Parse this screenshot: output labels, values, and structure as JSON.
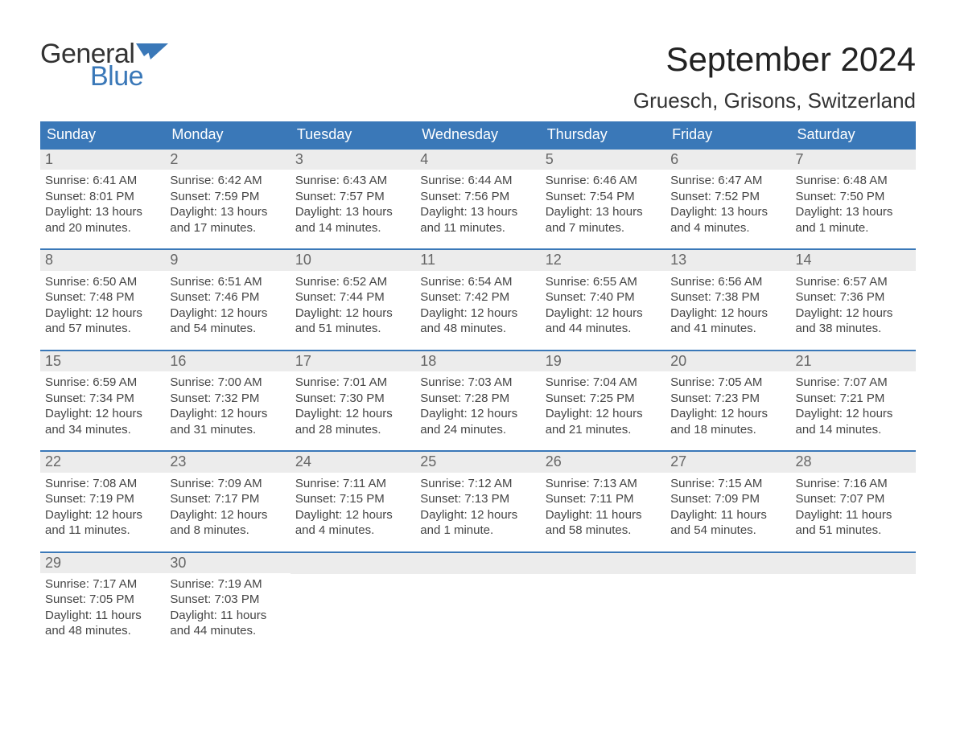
{
  "logo": {
    "general": "General",
    "blue": "Blue"
  },
  "title": "September 2024",
  "location": "Gruesch, Grisons, Switzerland",
  "colors": {
    "header_bg": "#3a78b8",
    "header_text": "#ffffff",
    "daynum_bg": "#ececec",
    "daynum_text": "#666666",
    "body_text": "#444444",
    "row_border": "#3a78b8",
    "logo_blue": "#3a78b8",
    "page_bg": "#ffffff"
  },
  "fonts": {
    "title_size_pt": 32,
    "location_size_pt": 20,
    "dow_size_pt": 14,
    "body_size_pt": 11
  },
  "days_of_week": [
    "Sunday",
    "Monday",
    "Tuesday",
    "Wednesday",
    "Thursday",
    "Friday",
    "Saturday"
  ],
  "weeks": [
    [
      {
        "num": "1",
        "sunrise": "Sunrise: 6:41 AM",
        "sunset": "Sunset: 8:01 PM",
        "d1": "Daylight: 13 hours",
        "d2": "and 20 minutes."
      },
      {
        "num": "2",
        "sunrise": "Sunrise: 6:42 AM",
        "sunset": "Sunset: 7:59 PM",
        "d1": "Daylight: 13 hours",
        "d2": "and 17 minutes."
      },
      {
        "num": "3",
        "sunrise": "Sunrise: 6:43 AM",
        "sunset": "Sunset: 7:57 PM",
        "d1": "Daylight: 13 hours",
        "d2": "and 14 minutes."
      },
      {
        "num": "4",
        "sunrise": "Sunrise: 6:44 AM",
        "sunset": "Sunset: 7:56 PM",
        "d1": "Daylight: 13 hours",
        "d2": "and 11 minutes."
      },
      {
        "num": "5",
        "sunrise": "Sunrise: 6:46 AM",
        "sunset": "Sunset: 7:54 PM",
        "d1": "Daylight: 13 hours",
        "d2": "and 7 minutes."
      },
      {
        "num": "6",
        "sunrise": "Sunrise: 6:47 AM",
        "sunset": "Sunset: 7:52 PM",
        "d1": "Daylight: 13 hours",
        "d2": "and 4 minutes."
      },
      {
        "num": "7",
        "sunrise": "Sunrise: 6:48 AM",
        "sunset": "Sunset: 7:50 PM",
        "d1": "Daylight: 13 hours",
        "d2": "and 1 minute."
      }
    ],
    [
      {
        "num": "8",
        "sunrise": "Sunrise: 6:50 AM",
        "sunset": "Sunset: 7:48 PM",
        "d1": "Daylight: 12 hours",
        "d2": "and 57 minutes."
      },
      {
        "num": "9",
        "sunrise": "Sunrise: 6:51 AM",
        "sunset": "Sunset: 7:46 PM",
        "d1": "Daylight: 12 hours",
        "d2": "and 54 minutes."
      },
      {
        "num": "10",
        "sunrise": "Sunrise: 6:52 AM",
        "sunset": "Sunset: 7:44 PM",
        "d1": "Daylight: 12 hours",
        "d2": "and 51 minutes."
      },
      {
        "num": "11",
        "sunrise": "Sunrise: 6:54 AM",
        "sunset": "Sunset: 7:42 PM",
        "d1": "Daylight: 12 hours",
        "d2": "and 48 minutes."
      },
      {
        "num": "12",
        "sunrise": "Sunrise: 6:55 AM",
        "sunset": "Sunset: 7:40 PM",
        "d1": "Daylight: 12 hours",
        "d2": "and 44 minutes."
      },
      {
        "num": "13",
        "sunrise": "Sunrise: 6:56 AM",
        "sunset": "Sunset: 7:38 PM",
        "d1": "Daylight: 12 hours",
        "d2": "and 41 minutes."
      },
      {
        "num": "14",
        "sunrise": "Sunrise: 6:57 AM",
        "sunset": "Sunset: 7:36 PM",
        "d1": "Daylight: 12 hours",
        "d2": "and 38 minutes."
      }
    ],
    [
      {
        "num": "15",
        "sunrise": "Sunrise: 6:59 AM",
        "sunset": "Sunset: 7:34 PM",
        "d1": "Daylight: 12 hours",
        "d2": "and 34 minutes."
      },
      {
        "num": "16",
        "sunrise": "Sunrise: 7:00 AM",
        "sunset": "Sunset: 7:32 PM",
        "d1": "Daylight: 12 hours",
        "d2": "and 31 minutes."
      },
      {
        "num": "17",
        "sunrise": "Sunrise: 7:01 AM",
        "sunset": "Sunset: 7:30 PM",
        "d1": "Daylight: 12 hours",
        "d2": "and 28 minutes."
      },
      {
        "num": "18",
        "sunrise": "Sunrise: 7:03 AM",
        "sunset": "Sunset: 7:28 PM",
        "d1": "Daylight: 12 hours",
        "d2": "and 24 minutes."
      },
      {
        "num": "19",
        "sunrise": "Sunrise: 7:04 AM",
        "sunset": "Sunset: 7:25 PM",
        "d1": "Daylight: 12 hours",
        "d2": "and 21 minutes."
      },
      {
        "num": "20",
        "sunrise": "Sunrise: 7:05 AM",
        "sunset": "Sunset: 7:23 PM",
        "d1": "Daylight: 12 hours",
        "d2": "and 18 minutes."
      },
      {
        "num": "21",
        "sunrise": "Sunrise: 7:07 AM",
        "sunset": "Sunset: 7:21 PM",
        "d1": "Daylight: 12 hours",
        "d2": "and 14 minutes."
      }
    ],
    [
      {
        "num": "22",
        "sunrise": "Sunrise: 7:08 AM",
        "sunset": "Sunset: 7:19 PM",
        "d1": "Daylight: 12 hours",
        "d2": "and 11 minutes."
      },
      {
        "num": "23",
        "sunrise": "Sunrise: 7:09 AM",
        "sunset": "Sunset: 7:17 PM",
        "d1": "Daylight: 12 hours",
        "d2": "and 8 minutes."
      },
      {
        "num": "24",
        "sunrise": "Sunrise: 7:11 AM",
        "sunset": "Sunset: 7:15 PM",
        "d1": "Daylight: 12 hours",
        "d2": "and 4 minutes."
      },
      {
        "num": "25",
        "sunrise": "Sunrise: 7:12 AM",
        "sunset": "Sunset: 7:13 PM",
        "d1": "Daylight: 12 hours",
        "d2": "and 1 minute."
      },
      {
        "num": "26",
        "sunrise": "Sunrise: 7:13 AM",
        "sunset": "Sunset: 7:11 PM",
        "d1": "Daylight: 11 hours",
        "d2": "and 58 minutes."
      },
      {
        "num": "27",
        "sunrise": "Sunrise: 7:15 AM",
        "sunset": "Sunset: 7:09 PM",
        "d1": "Daylight: 11 hours",
        "d2": "and 54 minutes."
      },
      {
        "num": "28",
        "sunrise": "Sunrise: 7:16 AM",
        "sunset": "Sunset: 7:07 PM",
        "d1": "Daylight: 11 hours",
        "d2": "and 51 minutes."
      }
    ],
    [
      {
        "num": "29",
        "sunrise": "Sunrise: 7:17 AM",
        "sunset": "Sunset: 7:05 PM",
        "d1": "Daylight: 11 hours",
        "d2": "and 48 minutes."
      },
      {
        "num": "30",
        "sunrise": "Sunrise: 7:19 AM",
        "sunset": "Sunset: 7:03 PM",
        "d1": "Daylight: 11 hours",
        "d2": "and 44 minutes."
      },
      {
        "empty": true
      },
      {
        "empty": true
      },
      {
        "empty": true
      },
      {
        "empty": true
      },
      {
        "empty": true
      }
    ]
  ]
}
